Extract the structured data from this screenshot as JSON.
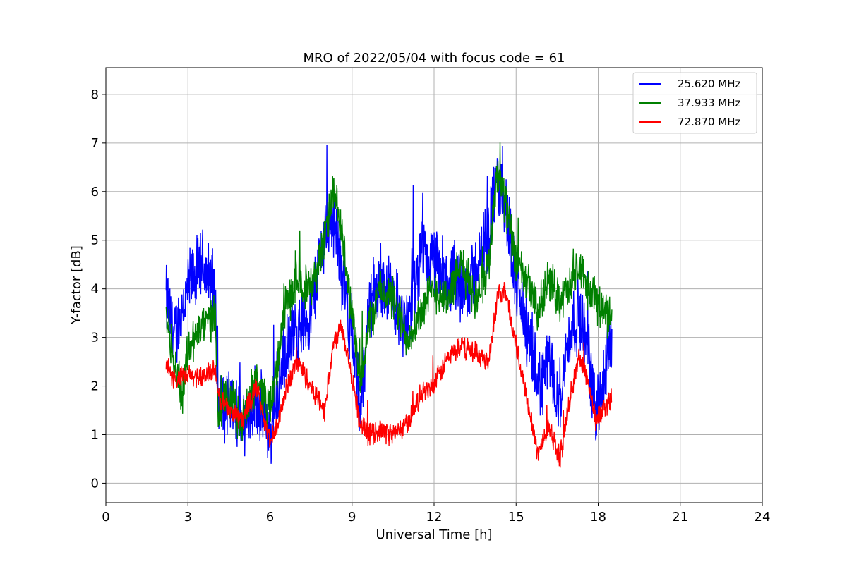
{
  "chart_data": {
    "type": "line",
    "title": "MRO of 2022/05/04 with focus code = 61",
    "xlabel": "Universal Time [h]",
    "ylabel": "Y-factor [dB]",
    "xlim": [
      0,
      24
    ],
    "ylim": [
      -0.4,
      8.55
    ],
    "xticks": [
      0,
      3,
      6,
      9,
      12,
      15,
      18,
      21,
      24
    ],
    "yticks": [
      0,
      1,
      2,
      3,
      4,
      5,
      6,
      7,
      8
    ],
    "grid": true,
    "legend_position": "top-right",
    "series": [
      {
        "name": "25.620 MHz",
        "color": "#0000ff",
        "noise": 0.9,
        "x": [
          2.2,
          2.5,
          3.0,
          3.5,
          4.0,
          4.1,
          4.5,
          5.0,
          5.5,
          6.0,
          6.5,
          7.0,
          7.5,
          8.0,
          8.3,
          8.6,
          9.0,
          9.3,
          9.6,
          10.0,
          10.5,
          11.0,
          11.5,
          12.0,
          12.5,
          13.0,
          13.5,
          14.0,
          14.3,
          14.6,
          15.0,
          15.5,
          15.8,
          16.2,
          16.6,
          17.0,
          17.3,
          17.6,
          17.9,
          18.2,
          18.5
        ],
        "y": [
          3.8,
          3.0,
          4.0,
          4.5,
          4.0,
          1.8,
          1.5,
          1.2,
          1.8,
          1.0,
          2.5,
          3.2,
          3.5,
          5.2,
          5.5,
          4.5,
          3.0,
          1.5,
          3.5,
          4.2,
          3.8,
          3.2,
          4.6,
          4.5,
          4.2,
          4.0,
          4.3,
          5.2,
          6.2,
          5.8,
          4.2,
          2.8,
          2.0,
          2.5,
          1.8,
          3.2,
          3.5,
          2.8,
          1.5,
          2.0,
          3.2
        ]
      },
      {
        "name": "37.933 MHz",
        "color": "#008000",
        "noise": 0.55,
        "x": [
          2.2,
          2.5,
          2.8,
          3.0,
          3.5,
          4.0,
          4.1,
          4.5,
          5.0,
          5.5,
          6.0,
          6.3,
          6.5,
          7.0,
          7.5,
          8.0,
          8.3,
          8.6,
          9.0,
          9.3,
          9.6,
          10.0,
          10.5,
          11.0,
          11.5,
          12.0,
          12.5,
          13.0,
          13.5,
          14.0,
          14.3,
          14.6,
          15.0,
          15.5,
          15.8,
          16.2,
          16.6,
          17.0,
          17.3,
          17.6,
          17.9,
          18.2,
          18.5
        ],
        "y": [
          3.5,
          2.5,
          1.8,
          2.8,
          3.2,
          3.5,
          1.5,
          1.8,
          1.2,
          2.2,
          1.5,
          2.5,
          3.5,
          4.2,
          4.0,
          5.0,
          6.0,
          5.2,
          3.5,
          2.0,
          3.2,
          4.0,
          3.8,
          3.0,
          3.5,
          4.0,
          3.8,
          4.5,
          3.8,
          4.5,
          6.5,
          5.8,
          4.5,
          4.0,
          3.5,
          4.2,
          3.8,
          4.0,
          4.5,
          4.0,
          3.8,
          3.5,
          3.5
        ]
      },
      {
        "name": "72.870 MHz",
        "color": "#ff0000",
        "noise": 0.28,
        "x": [
          2.2,
          2.5,
          3.0,
          3.5,
          4.0,
          4.1,
          4.5,
          5.0,
          5.5,
          6.0,
          6.3,
          6.6,
          7.0,
          7.5,
          8.0,
          8.3,
          8.6,
          9.0,
          9.3,
          9.6,
          10.0,
          10.5,
          11.0,
          11.5,
          12.0,
          12.5,
          13.0,
          13.5,
          14.0,
          14.3,
          14.6,
          15.0,
          15.5,
          15.8,
          16.2,
          16.6,
          17.0,
          17.3,
          17.6,
          17.9,
          18.2,
          18.5
        ],
        "y": [
          2.5,
          2.1,
          2.2,
          2.2,
          2.3,
          1.8,
          1.5,
          1.3,
          2.0,
          0.8,
          1.2,
          2.0,
          2.5,
          2.0,
          1.5,
          2.8,
          3.3,
          2.2,
          1.2,
          1.0,
          1.1,
          1.0,
          1.2,
          1.8,
          2.0,
          2.6,
          2.8,
          2.7,
          2.5,
          3.8,
          4.0,
          2.8,
          1.5,
          0.6,
          1.2,
          0.5,
          1.8,
          2.6,
          2.2,
          1.3,
          1.5,
          1.8
        ]
      }
    ]
  }
}
